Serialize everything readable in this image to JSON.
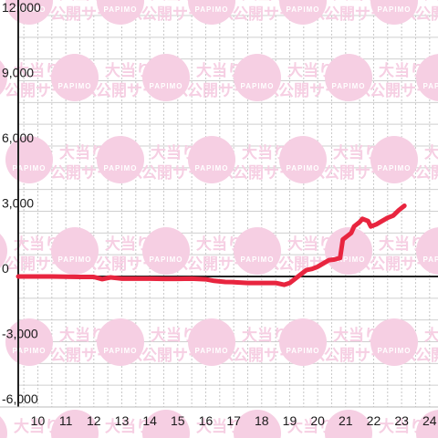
{
  "watermark": {
    "line1": "大当り情報",
    "line2": "公開サービス",
    "logo": "PAPIMO",
    "color": "#f6cfe3"
  },
  "chart_data": {
    "type": "line",
    "title": "",
    "xlabel": "",
    "ylabel": "",
    "xlim": [
      9.3,
      24.3
    ],
    "ylim": [
      -6000,
      12000
    ],
    "x_ticks": [
      10,
      11,
      12,
      13,
      14,
      15,
      16,
      17,
      18,
      19,
      20,
      21,
      22,
      23,
      24
    ],
    "x_tick_labels": [
      "10",
      "11",
      "12",
      "13",
      "14",
      "15",
      "16",
      "17",
      "18",
      "19",
      "20",
      "21",
      "22",
      "23",
      "24"
    ],
    "y_ticks": [
      -6000,
      -3000,
      0,
      3000,
      6000,
      9000,
      12000
    ],
    "y_tick_labels": [
      "-6,000",
      "-3,000",
      "0",
      "3,000",
      "6,000",
      "9,000",
      "12,000"
    ],
    "grid": true,
    "line_color": "#e8253f",
    "series": [
      {
        "points": [
          [
            9.3,
            0
          ],
          [
            10,
            0
          ],
          [
            10.5,
            0
          ],
          [
            11,
            -10
          ],
          [
            11.5,
            -20
          ],
          [
            12,
            -20
          ],
          [
            12.3,
            -120
          ],
          [
            12.6,
            -40
          ],
          [
            13,
            -100
          ],
          [
            13.5,
            -100
          ],
          [
            14,
            -100
          ],
          [
            14.5,
            -110
          ],
          [
            15,
            -110
          ],
          [
            15.5,
            -100
          ],
          [
            16,
            -130
          ],
          [
            16.3,
            -200
          ],
          [
            16.7,
            -250
          ],
          [
            17,
            -260
          ],
          [
            17.5,
            -300
          ],
          [
            18,
            -300
          ],
          [
            18.5,
            -300
          ],
          [
            18.8,
            -380
          ],
          [
            19.0,
            -300
          ],
          [
            19.2,
            -100
          ],
          [
            19.4,
            100
          ],
          [
            19.6,
            300
          ],
          [
            19.8,
            350
          ],
          [
            20.0,
            450
          ],
          [
            20.2,
            600
          ],
          [
            20.4,
            750
          ],
          [
            20.6,
            780
          ],
          [
            20.8,
            850
          ],
          [
            20.9,
            1700
          ],
          [
            21.1,
            1900
          ],
          [
            21.2,
            2000
          ],
          [
            21.3,
            2300
          ],
          [
            21.5,
            2500
          ],
          [
            21.6,
            2650
          ],
          [
            21.8,
            2550
          ],
          [
            21.9,
            2300
          ],
          [
            22.1,
            2400
          ],
          [
            22.3,
            2550
          ],
          [
            22.5,
            2700
          ],
          [
            22.7,
            2800
          ],
          [
            22.9,
            3050
          ],
          [
            23.1,
            3250
          ]
        ]
      }
    ]
  }
}
